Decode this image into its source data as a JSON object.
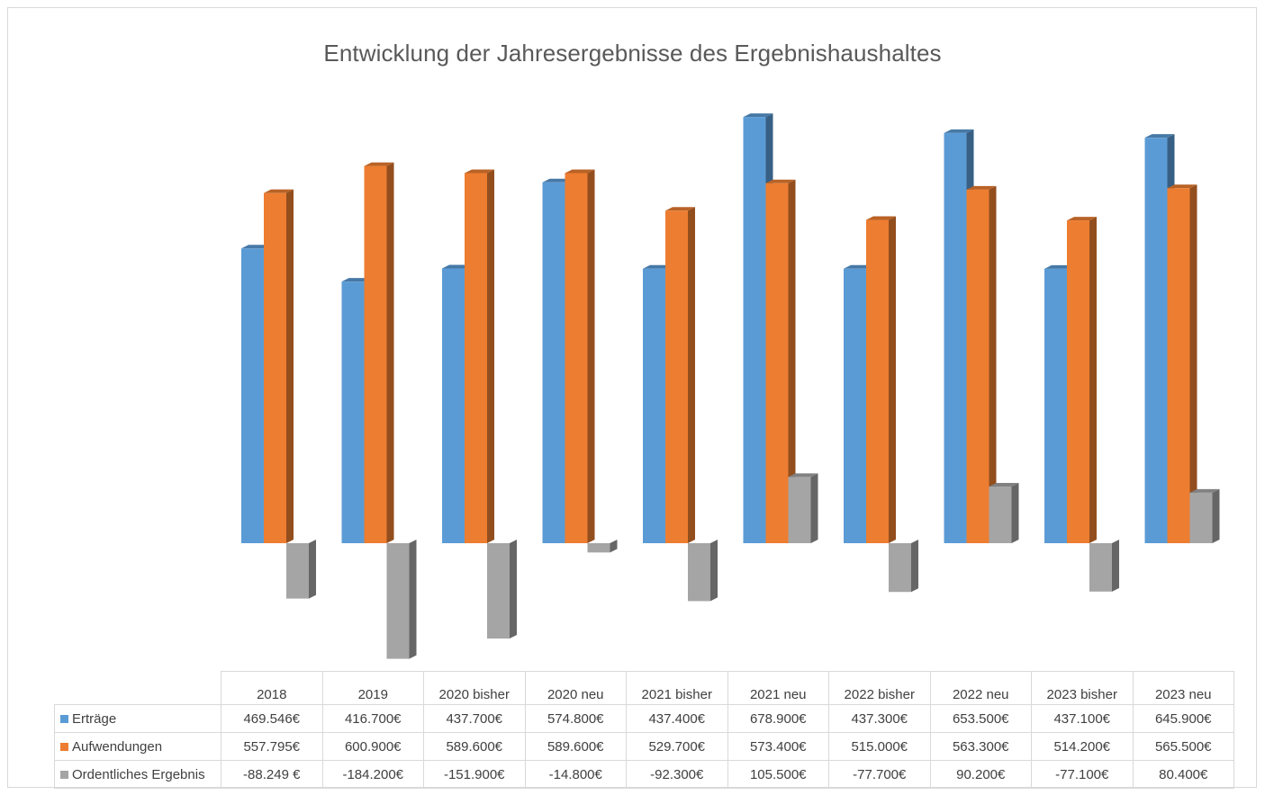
{
  "chart_data": {
    "type": "bar",
    "title": "Entwicklung der Jahresergebnisse des Ergebnishaushaltes",
    "categories": [
      "2018",
      "2019",
      "2020 bisher",
      "2020 neu",
      "2021 bisher",
      "2021 neu",
      "2022 bisher",
      "2022 neu",
      "2023 bisher",
      "2023 neu"
    ],
    "series": [
      {
        "name": "Erträge",
        "color": "#5b9bd5",
        "values": [
          469546,
          416700,
          437700,
          574800,
          437400,
          678900,
          437300,
          653500,
          437100,
          645900
        ],
        "labels": [
          "469.546€",
          "416.700€",
          "437.700€",
          "574.800€",
          "437.400€",
          "678.900€",
          "437.300€",
          "653.500€",
          "437.100€",
          "645.900€"
        ]
      },
      {
        "name": "Aufwendungen",
        "color": "#ed7d31",
        "values": [
          557795,
          600900,
          589600,
          589600,
          529700,
          573400,
          515000,
          563300,
          514200,
          565500
        ],
        "labels": [
          "557.795€",
          "600.900€",
          "589.600€",
          "589.600€",
          "529.700€",
          "573.400€",
          "515.000€",
          "563.300€",
          "514.200€",
          "565.500€"
        ]
      },
      {
        "name": "Ordentliches Ergebnis",
        "color": "#a5a5a5",
        "values": [
          -88249,
          -184200,
          -151900,
          -14800,
          -92300,
          105500,
          -77700,
          90200,
          -77100,
          80400
        ],
        "labels": [
          "-88.249 €",
          "-184.200€",
          "-151.900€",
          "-14.800€",
          "-92.300€",
          "105.500€",
          "-77.700€",
          "90.200€",
          "-77.100€",
          "80.400€"
        ]
      }
    ],
    "legend": "data-table",
    "grid": false
  }
}
